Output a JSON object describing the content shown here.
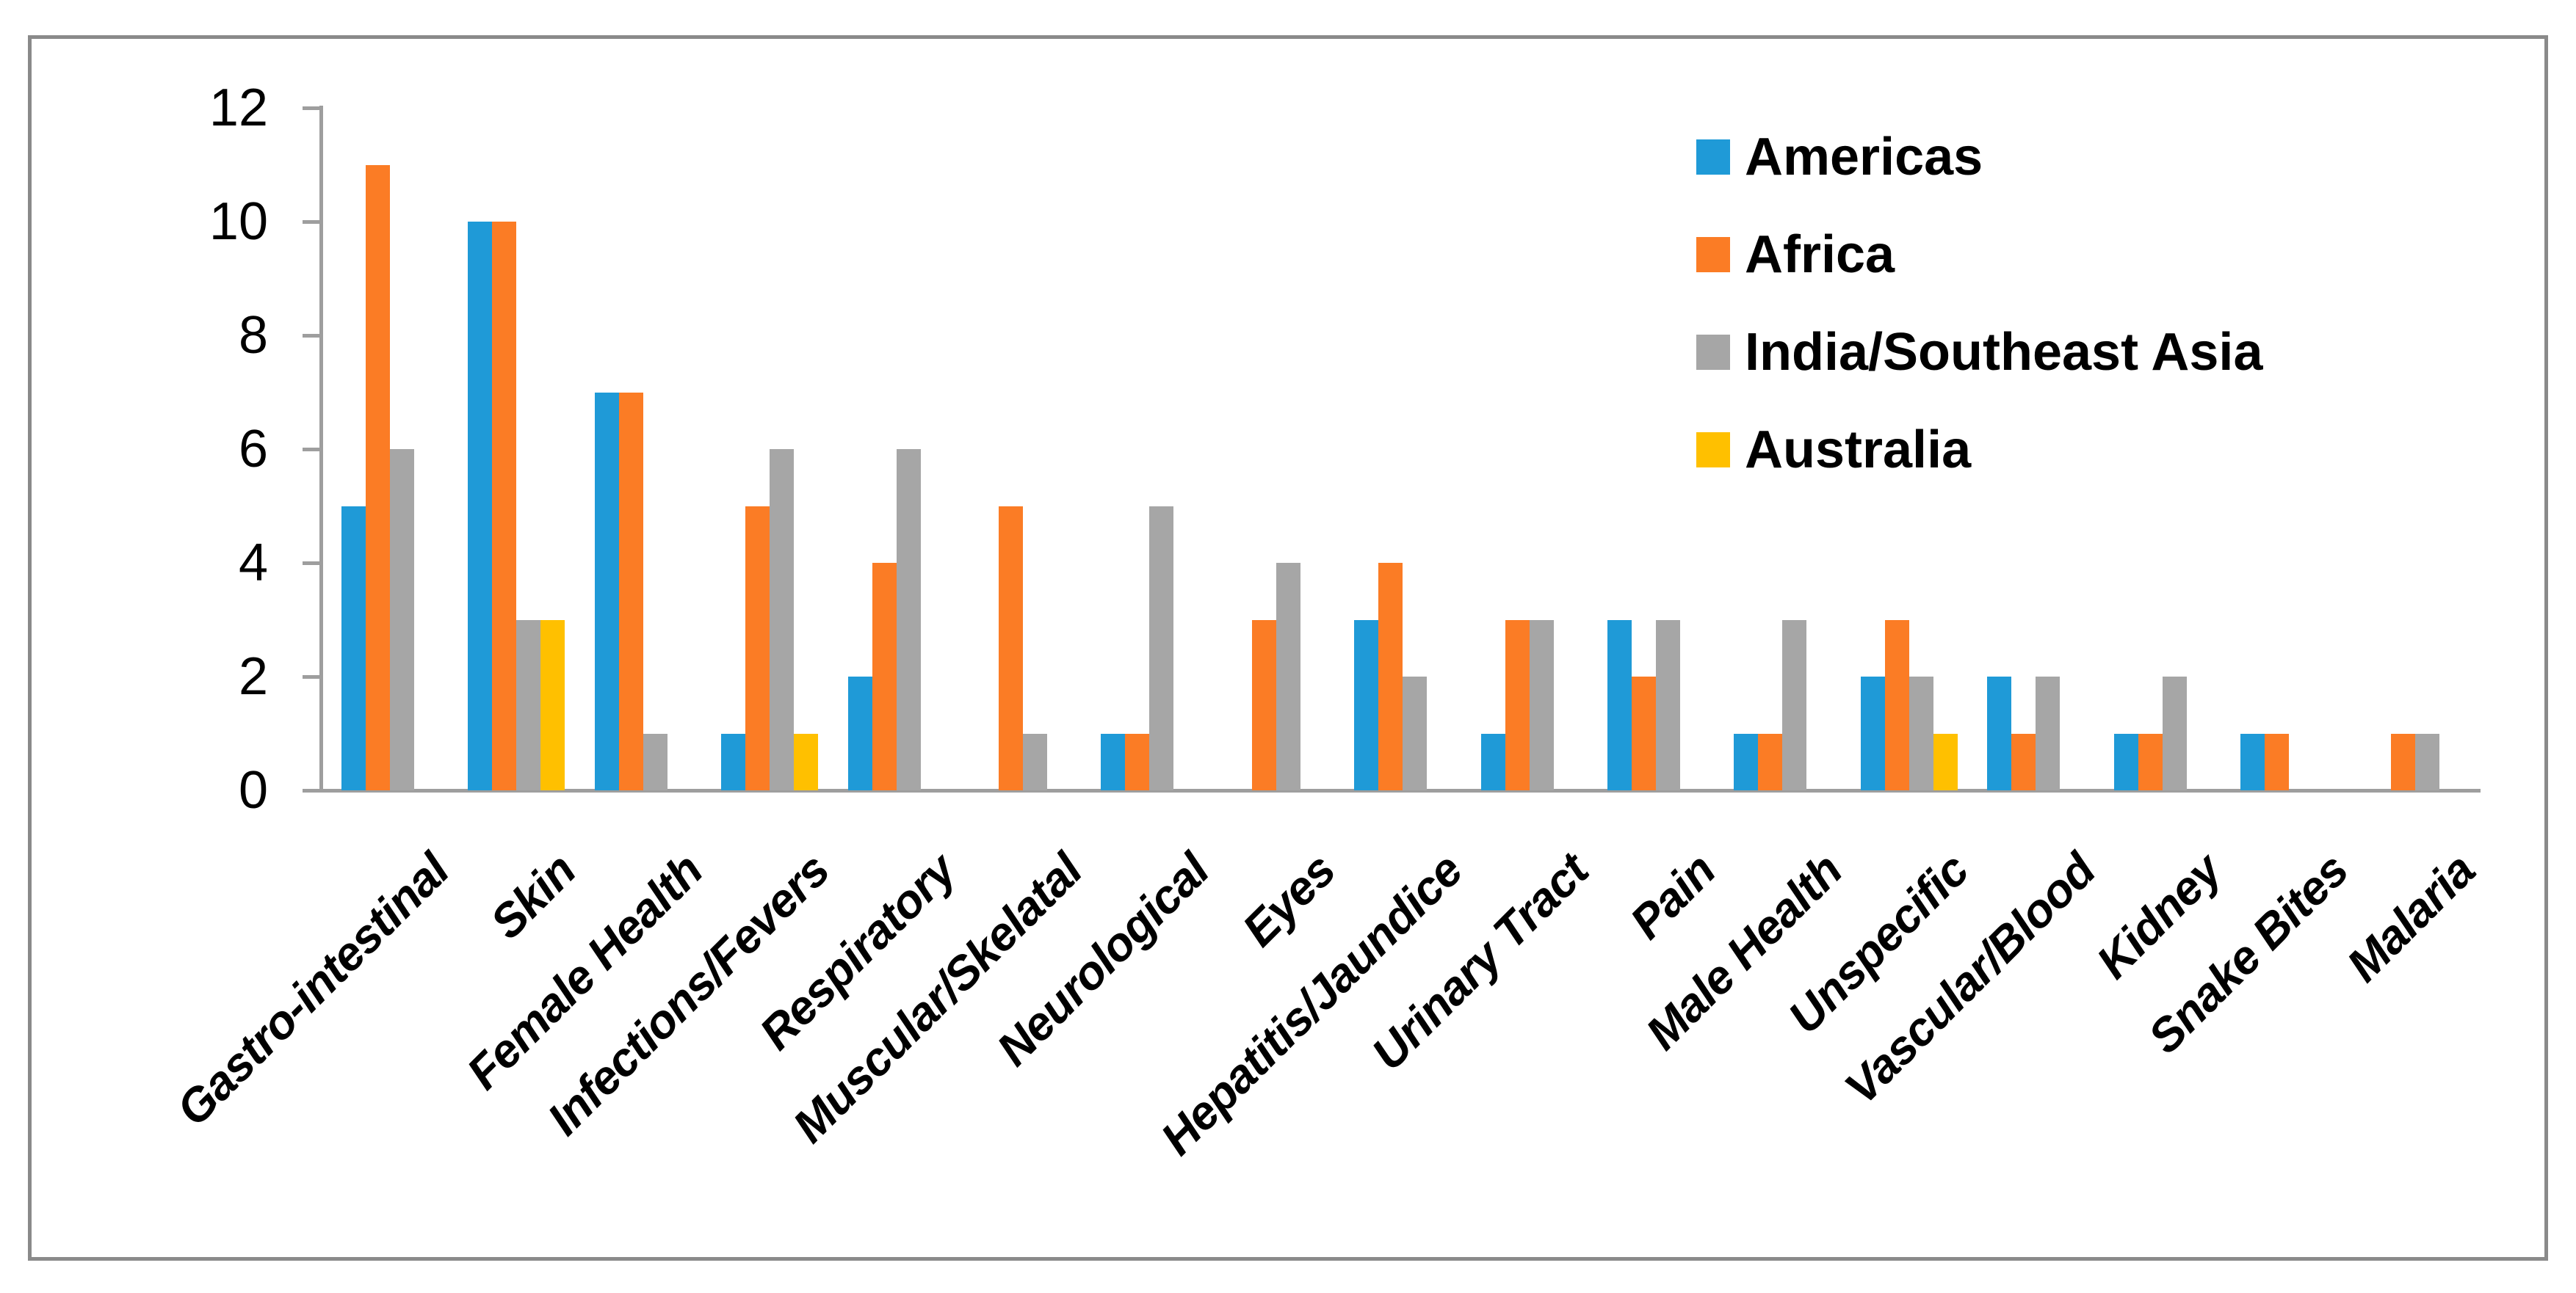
{
  "colors": {
    "background": "#FFFFFF",
    "frame_border": "#8A8A8A",
    "axis": "#9E9E9E",
    "text": "#000000",
    "americas_blue": "#1F9AD7",
    "africa_orange": "#FB7C25",
    "india_sea_gray": "#A6A6A6",
    "australia_yellow": "#FFC000"
  },
  "chart_data": {
    "type": "bar",
    "title": "",
    "xlabel": "",
    "ylabel": "",
    "grid": "off",
    "legend_position": "top-right-inside",
    "y_axis": {
      "min": 0,
      "max": 12,
      "step": 2,
      "ticks": [
        0,
        2,
        4,
        6,
        8,
        10,
        12
      ]
    },
    "categories": [
      "Gastro-intestinal",
      "Skin",
      "Female Health",
      "Infections/Fevers",
      "Respiratory",
      "Muscular/Skelatal",
      "Neurological",
      "Eyes",
      "Hepatitis/Jaundice",
      "Urinary Tract",
      "Pain",
      "Male Health",
      "Unspecific",
      "Vascular/Blood",
      "Kidney",
      "Snake Bites",
      "Malaria"
    ],
    "series": [
      {
        "name": "Americas",
        "color": "#1F9AD7",
        "values": [
          5,
          10,
          7,
          1,
          2,
          0,
          1,
          0,
          3,
          1,
          3,
          1,
          2,
          2,
          1,
          1,
          0
        ]
      },
      {
        "name": "Africa",
        "color": "#FB7C25",
        "values": [
          11,
          10,
          7,
          5,
          4,
          5,
          1,
          3,
          4,
          3,
          2,
          1,
          3,
          1,
          1,
          1,
          1
        ]
      },
      {
        "name": "India/Southeast Asia",
        "color": "#A6A6A6",
        "values": [
          6,
          3,
          1,
          6,
          6,
          1,
          5,
          4,
          2,
          3,
          3,
          3,
          2,
          2,
          2,
          0,
          1
        ]
      },
      {
        "name": "Australia",
        "color": "#FFC000",
        "values": [
          0,
          3,
          0,
          1,
          0,
          0,
          0,
          0,
          0,
          0,
          0,
          0,
          1,
          0,
          0,
          0,
          0
        ]
      }
    ]
  }
}
